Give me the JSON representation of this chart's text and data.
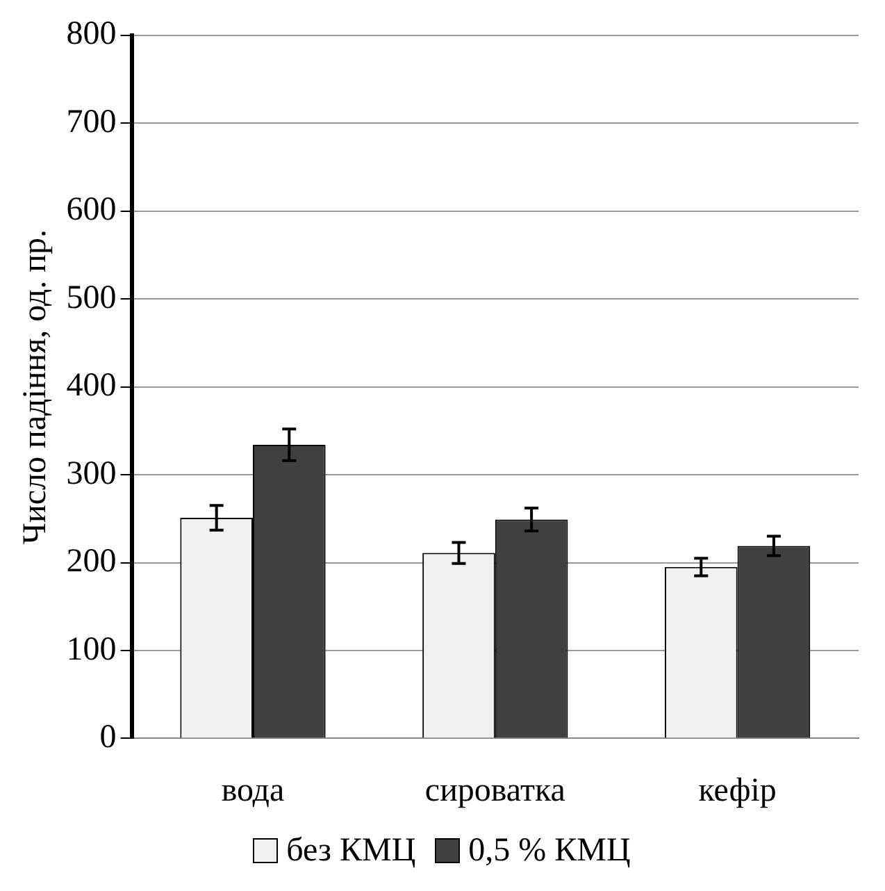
{
  "chart_data": {
    "type": "bar",
    "ylabel": "Число падіння, од. пр.",
    "categories": [
      "вода",
      "сироватка",
      "кефір"
    ],
    "series": [
      {
        "name": "без КМЦ",
        "color": "#f0f0f0",
        "values": [
          251,
          211,
          195
        ],
        "errors": [
          14,
          12,
          10
        ]
      },
      {
        "name": "0,5 % КМЦ",
        "color": "#404040",
        "values": [
          334,
          249,
          219
        ],
        "errors": [
          18,
          13,
          11
        ]
      }
    ],
    "ylim": [
      0,
      800
    ],
    "yticks": [
      0,
      100,
      200,
      300,
      400,
      500,
      600,
      700,
      800
    ],
    "grid": "y",
    "legend": "bottom"
  }
}
